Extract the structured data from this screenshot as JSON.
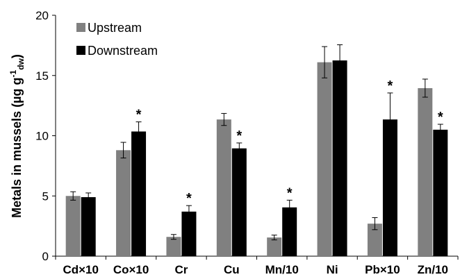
{
  "chart_data": {
    "type": "bar",
    "categories": [
      "Cd×10",
      "Co×10",
      "Cr",
      "Cu",
      "Mn/10",
      "Ni",
      "Pb×10",
      "Zn/10"
    ],
    "series": [
      {
        "name": "Upstream",
        "color": "#808080",
        "values": [
          5.0,
          8.8,
          1.6,
          11.35,
          1.55,
          16.1,
          2.7,
          13.95
        ],
        "errors": [
          0.35,
          0.65,
          0.2,
          0.5,
          0.2,
          1.3,
          0.5,
          0.75
        ]
      },
      {
        "name": "Downstream",
        "color": "#000000",
        "values": [
          4.9,
          10.35,
          3.7,
          8.95,
          4.05,
          16.25,
          11.35,
          10.5
        ],
        "errors": [
          0.35,
          0.8,
          0.5,
          0.45,
          0.6,
          1.3,
          2.2,
          0.45
        ]
      }
    ],
    "significance": [
      false,
      true,
      true,
      true,
      true,
      false,
      true,
      true
    ],
    "significance_symbol": "*",
    "ylabel": {
      "main": "Metals in mussels (µg g",
      "sup": "-1",
      "sub": "dw",
      "close": ")"
    },
    "ylim": [
      0,
      20
    ],
    "yticks": [
      "0",
      "5",
      "10",
      "15",
      "20"
    ],
    "legend_position": "top-left",
    "grid": false
  }
}
